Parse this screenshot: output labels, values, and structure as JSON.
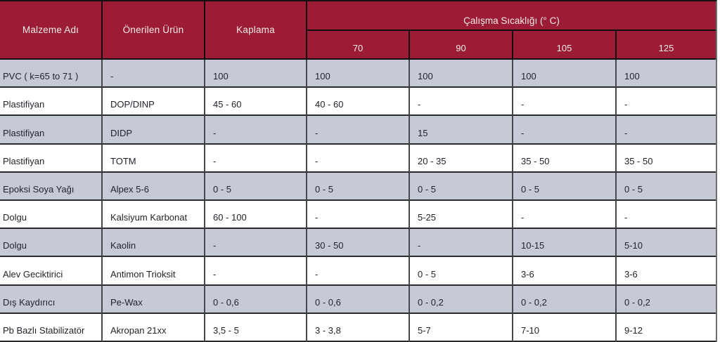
{
  "colors": {
    "header_bg": "#9C1B37",
    "header_text": "#F3EDE2",
    "row_shaded_bg": "#C6CAD7",
    "row_plain_bg": "#FFFFFF",
    "data_text": "#23232B",
    "grid_line": "#2A2A2A"
  },
  "table": {
    "col_headers": {
      "material": "Malzeme Adı",
      "product": "Önerilen Ürün",
      "coating": "Kaplama",
      "temp_group": "Çalışma Sıcaklığı (° C)",
      "temps": [
        "70",
        "90",
        "105",
        "125"
      ]
    },
    "rows": [
      [
        "PVC ( k=65 to 71 )",
        "-",
        "100",
        "100",
        "100",
        "100",
        "100"
      ],
      [
        "Plastifiyan",
        "DOP/DINP",
        "45 - 60",
        "40 - 60",
        "-",
        "-",
        "-"
      ],
      [
        "Plastifiyan",
        "DIDP",
        "-",
        "-",
        "15",
        "-",
        "-"
      ],
      [
        "Plastifiyan",
        "TOTM",
        "-",
        "-",
        "20 - 35",
        "35 - 50",
        "35 - 50"
      ],
      [
        "Epoksi Soya Yağı",
        "Alpex 5-6",
        "0 - 5",
        "0 - 5",
        "0 - 5",
        "0 - 5",
        "0 - 5"
      ],
      [
        "Dolgu",
        "Kalsiyum Karbonat",
        "60 - 100",
        "-",
        "5-25",
        "-",
        "-"
      ],
      [
        "Dolgu",
        "Kaolin",
        "-",
        "30 - 50",
        "-",
        "10-15",
        "5-10"
      ],
      [
        "Alev Geciktirici",
        "Antimon Trioksit",
        "-",
        "-",
        "0 - 5",
        "3-6",
        "3-6"
      ],
      [
        "Dış Kaydırıcı",
        "Pe-Wax",
        "0 - 0,6",
        "0 - 0,6",
        "0 - 0,2",
        "0 - 0,2",
        "0 - 0,2"
      ],
      [
        "Pb Bazlı Stabilizatör",
        "Akropan 21xx",
        "3,5 - 5",
        "3 - 3,8",
        "5-7",
        "7-10",
        "9-12"
      ]
    ]
  },
  "chart_data": {
    "type": "table",
    "title": "",
    "columns": [
      "Malzeme Adı",
      "Önerilen Ürün",
      "Kaplama",
      "Çalışma Sıcaklığı (° C) 70",
      "Çalışma Sıcaklığı (° C) 90",
      "Çalışma Sıcaklığı (° C) 105",
      "Çalışma Sıcaklığı (° C) 125"
    ],
    "rows": [
      [
        "PVC ( k=65 to 71 )",
        "-",
        "100",
        "100",
        "100",
        "100",
        "100"
      ],
      [
        "Plastifiyan",
        "DOP/DINP",
        "45 - 60",
        "40 - 60",
        "-",
        "-",
        "-"
      ],
      [
        "Plastifiyan",
        "DIDP",
        "-",
        "-",
        "15",
        "-",
        "-"
      ],
      [
        "Plastifiyan",
        "TOTM",
        "-",
        "-",
        "20 - 35",
        "35 - 50",
        "35 - 50"
      ],
      [
        "Epoksi Soya Yağı",
        "Alpex 5-6",
        "0 - 5",
        "0 - 5",
        "0 - 5",
        "0 - 5",
        "0 - 5"
      ],
      [
        "Dolgu",
        "Kalsiyum Karbonat",
        "60 - 100",
        "-",
        "5-25",
        "-",
        "-"
      ],
      [
        "Dolgu",
        "Kaolin",
        "-",
        "30 - 50",
        "-",
        "10-15",
        "5-10"
      ],
      [
        "Alev Geciktirici",
        "Antimon Trioksit",
        "-",
        "-",
        "0 - 5",
        "3-6",
        "3-6"
      ],
      [
        "Dış Kaydırıcı",
        "Pe-Wax",
        "0 - 0,6",
        "0 - 0,6",
        "0 - 0,2",
        "0 - 0,2",
        "0 - 0,2"
      ],
      [
        "Pb Bazlı Stabilizatör",
        "Akropan 21xx",
        "3,5 - 5",
        "3 - 3,8",
        "5-7",
        "7-10",
        "9-12"
      ]
    ]
  }
}
